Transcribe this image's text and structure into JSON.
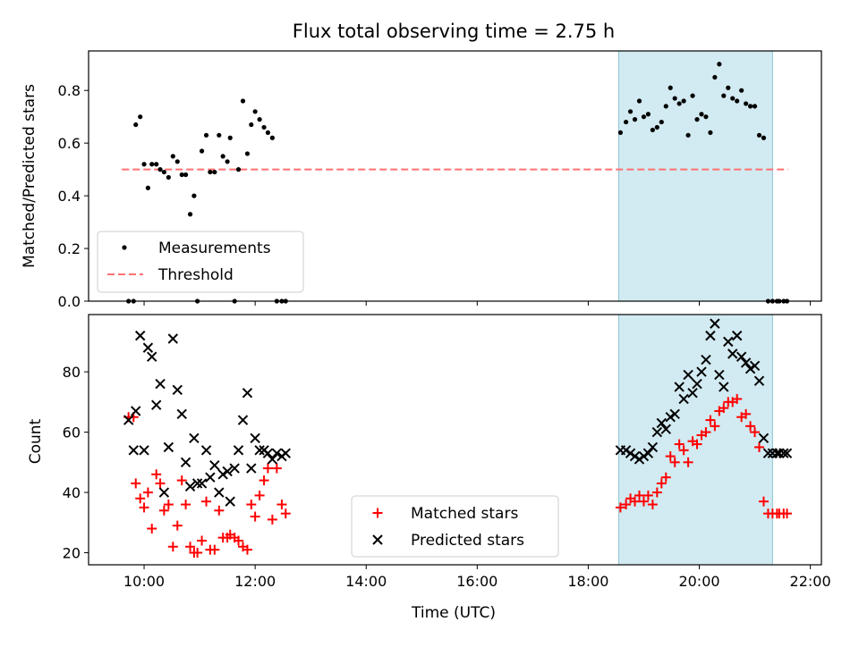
{
  "chart_data": {
    "type": "scatter",
    "title": "Flux total observing time = 2.75 h",
    "xlabel": "Time (UTC)",
    "x_unit": "hours",
    "xlim": [
      9.0,
      22.2
    ],
    "x_ticks": [
      10,
      12,
      14,
      16,
      18,
      20,
      22
    ],
    "x_tick_labels": [
      "10:00",
      "12:00",
      "14:00",
      "16:00",
      "18:00",
      "20:00",
      "22:00"
    ],
    "highlight": {
      "x_start": 18.55,
      "x_end": 21.32,
      "color": "#add8e6"
    },
    "top": {
      "ylabel": "Matched/Predicted stars",
      "ylim": [
        0,
        0.95
      ],
      "y_ticks": [
        0.0,
        0.2,
        0.4,
        0.6,
        0.8
      ],
      "y_tick_labels": [
        "0.0",
        "0.2",
        "0.4",
        "0.6",
        "0.8"
      ],
      "threshold": {
        "value": 0.5,
        "x_start": 9.6,
        "x_end": 21.6,
        "color": "#ff7070"
      },
      "legend": {
        "position": "lower-left",
        "entries": [
          "Measurements",
          "Threshold"
        ]
      },
      "measurements": {
        "x": [
          9.72,
          9.81,
          9.85,
          9.93,
          10.0,
          10.07,
          10.14,
          10.22,
          10.29,
          10.36,
          10.44,
          10.52,
          10.6,
          10.68,
          10.75,
          10.83,
          10.9,
          10.96,
          11.04,
          11.12,
          11.19,
          11.27,
          11.35,
          11.42,
          11.5,
          11.55,
          11.63,
          11.7,
          11.78,
          11.86,
          11.93,
          12.0,
          12.08,
          12.16,
          12.23,
          12.31,
          12.39,
          12.48,
          12.55,
          18.58,
          18.68,
          18.76,
          18.84,
          18.92,
          19.0,
          19.08,
          19.16,
          19.24,
          19.32,
          19.4,
          19.48,
          19.56,
          19.64,
          19.72,
          19.8,
          19.88,
          19.96,
          20.04,
          20.12,
          20.2,
          20.28,
          20.36,
          20.44,
          20.52,
          20.6,
          20.68,
          20.76,
          20.84,
          20.92,
          21.0,
          21.08,
          21.16,
          21.24,
          21.32,
          21.4,
          21.44,
          21.52,
          21.58
        ],
        "y": [
          0.0,
          0.0,
          0.67,
          0.7,
          0.52,
          0.43,
          0.52,
          0.52,
          0.5,
          0.49,
          0.47,
          0.55,
          0.53,
          0.48,
          0.48,
          0.33,
          0.4,
          0.0,
          0.57,
          0.63,
          0.49,
          0.49,
          0.63,
          0.55,
          0.53,
          0.62,
          0.0,
          0.5,
          0.76,
          0.56,
          0.67,
          0.72,
          0.69,
          0.66,
          0.64,
          0.62,
          0.0,
          0.0,
          0.0,
          0.64,
          0.68,
          0.72,
          0.69,
          0.76,
          0.7,
          0.71,
          0.65,
          0.66,
          0.68,
          0.74,
          0.81,
          0.77,
          0.75,
          0.76,
          0.63,
          0.78,
          0.69,
          0.71,
          0.7,
          0.64,
          0.85,
          0.9,
          0.78,
          0.81,
          0.77,
          0.76,
          0.8,
          0.75,
          0.74,
          0.74,
          0.63,
          0.62,
          0.0,
          0.0,
          0.0,
          0.0,
          0.0,
          0.0
        ]
      }
    },
    "bottom": {
      "ylabel": "Count",
      "ylim": [
        16,
        99
      ],
      "y_ticks": [
        20,
        40,
        60,
        80
      ],
      "y_tick_labels": [
        "20",
        "40",
        "60",
        "80"
      ],
      "legend": {
        "position": "lower-center",
        "entries": [
          "Matched stars",
          "Predicted stars"
        ]
      },
      "matched": {
        "x": [
          9.72,
          9.81,
          9.85,
          9.93,
          10.0,
          10.07,
          10.14,
          10.22,
          10.29,
          10.36,
          10.44,
          10.52,
          10.6,
          10.68,
          10.75,
          10.83,
          10.9,
          10.96,
          11.04,
          11.12,
          11.19,
          11.27,
          11.35,
          11.42,
          11.5,
          11.55,
          11.63,
          11.7,
          11.78,
          11.86,
          11.93,
          12.0,
          12.08,
          12.16,
          12.23,
          12.31,
          12.39,
          12.48,
          12.55,
          18.58,
          18.68,
          18.76,
          18.84,
          18.92,
          19.0,
          19.08,
          19.16,
          19.24,
          19.32,
          19.4,
          19.48,
          19.56,
          19.64,
          19.72,
          19.8,
          19.88,
          19.96,
          20.04,
          20.12,
          20.2,
          20.28,
          20.36,
          20.44,
          20.52,
          20.6,
          20.68,
          20.76,
          20.84,
          20.92,
          21.0,
          21.08,
          21.16,
          21.24,
          21.32,
          21.4,
          21.44,
          21.52,
          21.58
        ],
        "y": [
          65,
          65,
          43,
          38,
          35,
          40,
          28,
          46,
          43,
          34,
          36,
          22,
          29,
          44,
          36,
          22,
          20,
          20,
          24,
          37,
          21,
          21,
          34,
          25,
          25,
          26,
          25,
          24,
          22,
          21,
          36,
          32,
          39,
          44,
          48,
          31,
          48,
          36,
          33,
          35,
          36,
          38,
          37,
          39,
          37,
          39,
          36,
          40,
          43,
          45,
          52,
          50,
          56,
          54,
          50,
          57,
          56,
          59,
          60,
          64,
          62,
          67,
          68,
          70,
          70,
          71,
          65,
          66,
          62,
          60,
          55,
          37,
          33,
          33,
          33,
          33,
          33,
          33
        ]
      },
      "predicted": {
        "x": [
          9.72,
          9.81,
          9.85,
          9.93,
          10.0,
          10.07,
          10.14,
          10.22,
          10.29,
          10.36,
          10.44,
          10.52,
          10.6,
          10.68,
          10.75,
          10.83,
          10.9,
          10.96,
          11.04,
          11.12,
          11.19,
          11.27,
          11.35,
          11.42,
          11.5,
          11.55,
          11.63,
          11.7,
          11.78,
          11.86,
          11.93,
          12.0,
          12.08,
          12.16,
          12.23,
          12.31,
          12.39,
          12.48,
          12.55,
          18.58,
          18.68,
          18.76,
          18.84,
          18.92,
          19.0,
          19.08,
          19.16,
          19.24,
          19.32,
          19.4,
          19.48,
          19.56,
          19.64,
          19.72,
          19.8,
          19.88,
          19.96,
          20.04,
          20.12,
          20.2,
          20.28,
          20.36,
          20.44,
          20.52,
          20.6,
          20.68,
          20.76,
          20.84,
          20.92,
          21.0,
          21.08,
          21.16,
          21.24,
          21.32,
          21.4,
          21.44,
          21.52,
          21.58
        ],
        "y": [
          64,
          54,
          67,
          92,
          54,
          88,
          85,
          69,
          76,
          40,
          55,
          91,
          74,
          66,
          50,
          42,
          58,
          43,
          43,
          54,
          45,
          49,
          40,
          46,
          47,
          37,
          48,
          54,
          64,
          73,
          48,
          58,
          54,
          54,
          53,
          51,
          53,
          52,
          53,
          54,
          54,
          53,
          52,
          51,
          52,
          53,
          55,
          60,
          63,
          61,
          65,
          66,
          75,
          71,
          79,
          73,
          76,
          80,
          84,
          92,
          96,
          79,
          75,
          90,
          86,
          92,
          85,
          83,
          81,
          82,
          77,
          58,
          53,
          53,
          53,
          53,
          53,
          53
        ]
      }
    }
  }
}
